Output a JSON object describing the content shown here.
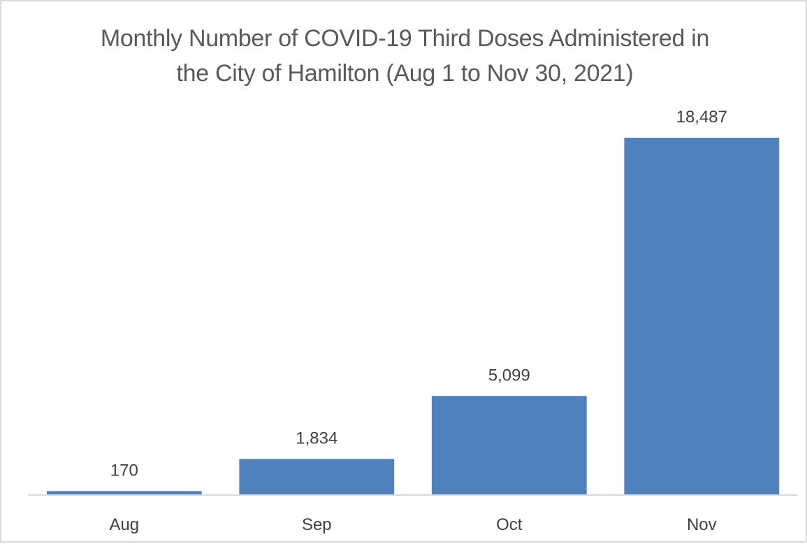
{
  "chart_data": {
    "type": "bar",
    "title_lines": [
      "Monthly Number of COVID-19 Third Doses Administered in",
      "the City of Hamilton (Aug 1 to Nov 30, 2021)"
    ],
    "categories": [
      "Aug",
      "Sep",
      "Oct",
      "Nov"
    ],
    "values": [
      170,
      1834,
      5099,
      18487
    ],
    "value_labels": [
      "170",
      "1,834",
      "5,099",
      "18,487"
    ],
    "xlabel": "",
    "ylabel": "",
    "ylim": [
      0,
      18487
    ],
    "grid": false,
    "legend": "none",
    "bar_color": "#4f81bd",
    "axis_color": "#d9d9d9"
  }
}
